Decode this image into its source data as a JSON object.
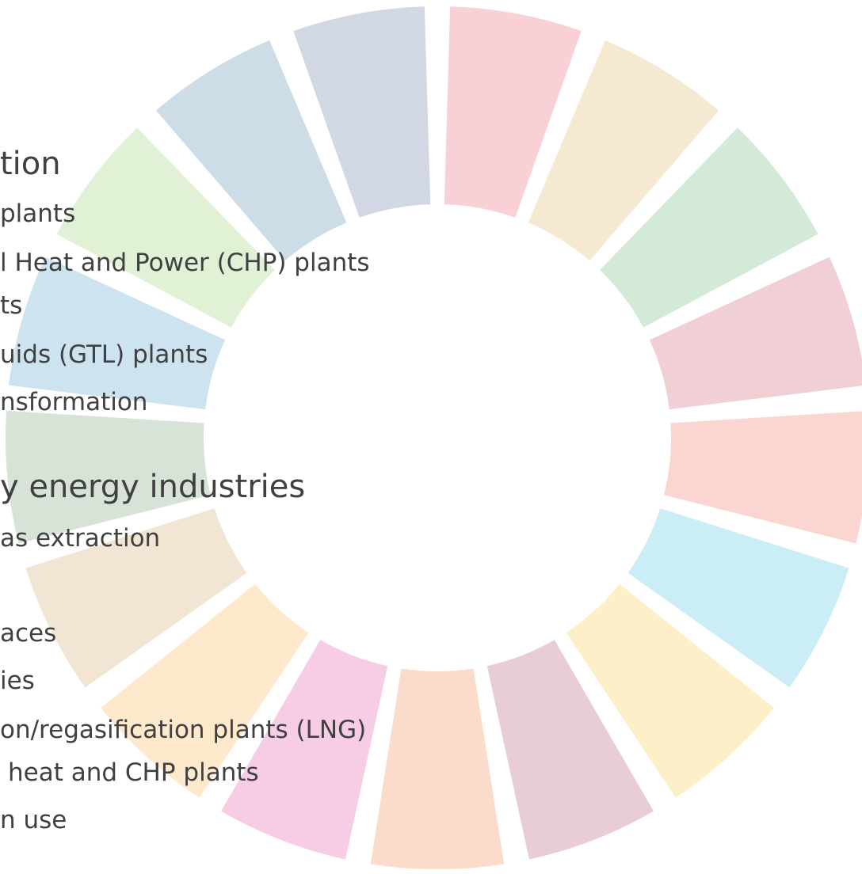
{
  "lines": [
    "tion",
    "plants",
    "l Heat and Power (CHP) plants",
    "ts",
    "uids (GTL) plants",
    "nsformation",
    "y energy industries",
    "as extraction",
    "aces",
    "ies",
    "on/regasification plants (LNG)",
    "heat and CHP plants",
    "n use"
  ]
}
